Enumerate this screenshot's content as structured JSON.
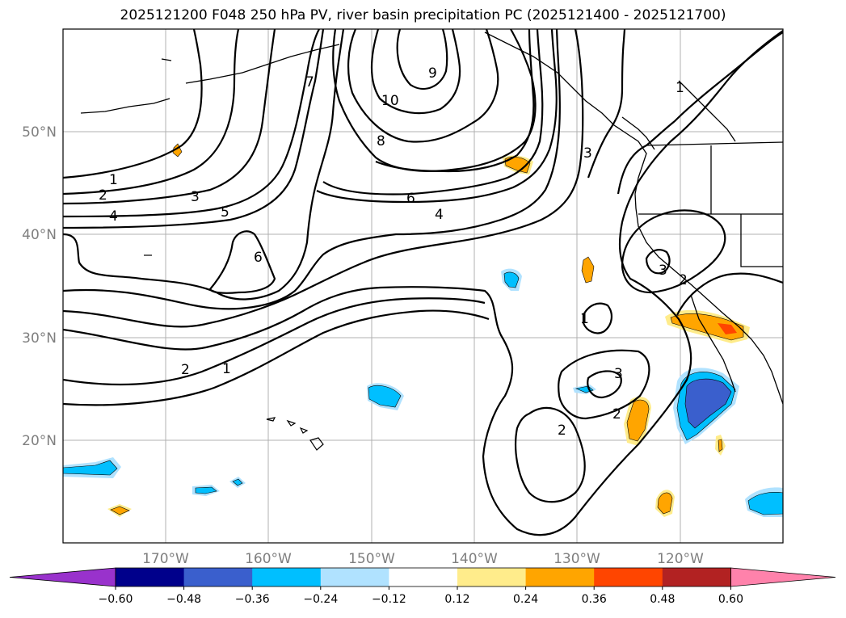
{
  "title": "2025121200 F048 250 hPa PV, river basin precipitation PC (2025121400 - 2025121700)",
  "map": {
    "lat_ticks": [
      "50°N",
      "40°N",
      "30°N",
      "20°N"
    ],
    "lon_ticks": [
      "170°W",
      "160°W",
      "150°W",
      "140°W",
      "130°W",
      "120°W"
    ]
  },
  "colorbar": {
    "tick_labels": [
      "−0.60",
      "−0.48",
      "−0.36",
      "−0.24",
      "−0.12",
      "0.12",
      "0.24",
      "0.36",
      "0.48",
      "0.60"
    ],
    "colors": [
      "#9932cc",
      "#00008b",
      "#3a5fcd",
      "#00bfff",
      "#b0e2ff",
      "#ffffff",
      "#ffec8b",
      "#ffa500",
      "#ff4500",
      "#b22222",
      "#ff82ab"
    ]
  },
  "contour_labels": [
    "1",
    "2",
    "3",
    "4",
    "5",
    "6",
    "7",
    "8",
    "9",
    "10",
    "6",
    "4",
    "3",
    "2",
    "1",
    "3",
    "2",
    "1",
    "1",
    "2",
    "3",
    "2"
  ]
}
